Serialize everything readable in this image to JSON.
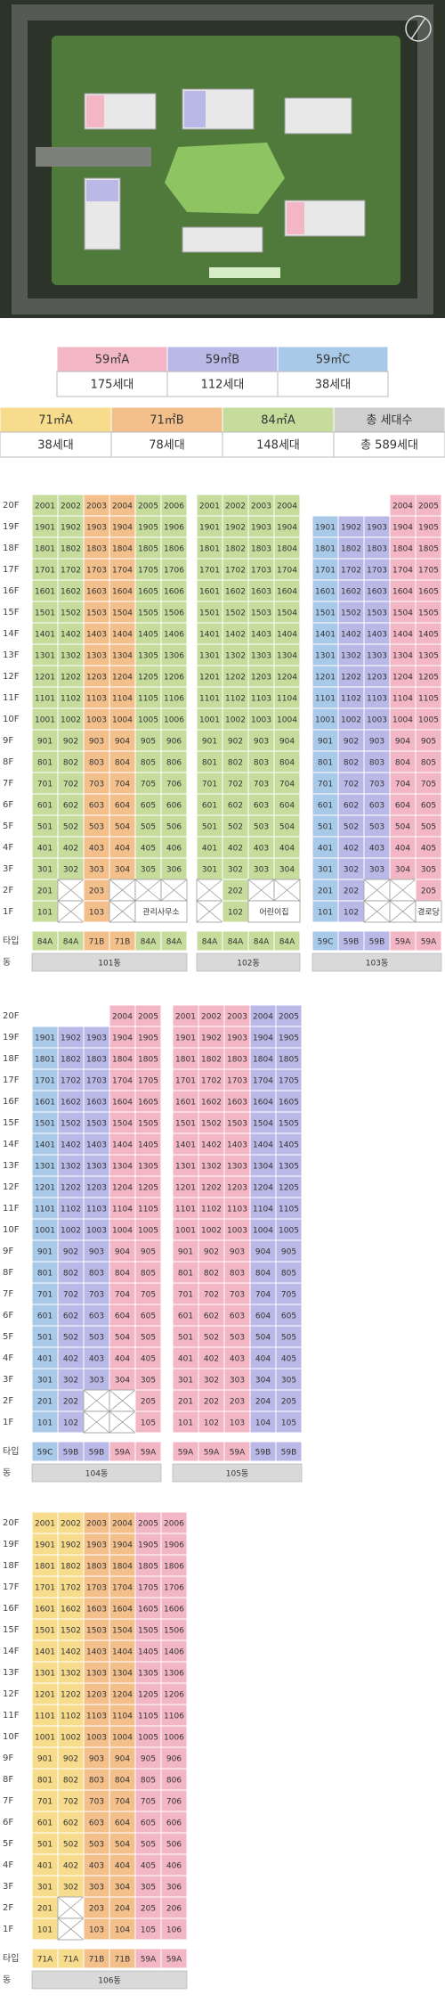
{
  "legend": [
    {
      "headers": [
        "59㎡A",
        "59㎡B",
        "59㎡C"
      ],
      "counts": [
        "175세대",
        "112세대",
        "38세대"
      ],
      "colors": [
        "#f2b6c4",
        "#b9b8e6",
        "#a9c9e8"
      ]
    },
    {
      "headers": [
        "71㎡A",
        "71㎡B",
        "84㎡A",
        "총 세대수"
      ],
      "counts": [
        "38세대",
        "78세대",
        "148세대",
        "총 589세대"
      ],
      "colors": [
        "#f6dc8c",
        "#f3c08c",
        "#c6dc9c",
        "#cfcfcf"
      ]
    }
  ],
  "floor_labels": [
    "20F",
    "19F",
    "18F",
    "17F",
    "16F",
    "15F",
    "14F",
    "13F",
    "12F",
    "11F",
    "10F",
    "9F",
    "8F",
    "7F",
    "6F",
    "5F",
    "4F",
    "3F",
    "2F",
    "1F"
  ],
  "type_label": "타입",
  "building_label": "동",
  "sections": [
    {
      "buildings": [
        {
          "name": "101동",
          "types": [
            "84A",
            "84A",
            "71B",
            "71B",
            "84A",
            "84A"
          ],
          "colors": [
            "#c6dc9c",
            "#c6dc9c",
            "#f3c08c",
            "#f3c08c",
            "#c6dc9c",
            "#c6dc9c"
          ],
          "rows": [
            [
              "2001",
              "2002",
              "2003",
              "2004",
              "2005",
              "2006"
            ],
            [
              "1901",
              "1902",
              "1903",
              "1904",
              "1905",
              "1906"
            ],
            [
              "1801",
              "1802",
              "1803",
              "1804",
              "1805",
              "1806"
            ],
            [
              "1701",
              "1702",
              "1703",
              "1704",
              "1705",
              "1706"
            ],
            [
              "1601",
              "1602",
              "1603",
              "1604",
              "1605",
              "1606"
            ],
            [
              "1501",
              "1502",
              "1503",
              "1504",
              "1505",
              "1506"
            ],
            [
              "1401",
              "1402",
              "1403",
              "1404",
              "1405",
              "1406"
            ],
            [
              "1301",
              "1302",
              "1303",
              "1304",
              "1305",
              "1306"
            ],
            [
              "1201",
              "1202",
              "1203",
              "1204",
              "1205",
              "1206"
            ],
            [
              "1101",
              "1102",
              "1103",
              "1104",
              "1105",
              "1106"
            ],
            [
              "1001",
              "1002",
              "1003",
              "1004",
              "1005",
              "1006"
            ],
            [
              "901",
              "902",
              "903",
              "904",
              "905",
              "906"
            ],
            [
              "801",
              "802",
              "803",
              "804",
              "805",
              "806"
            ],
            [
              "701",
              "702",
              "703",
              "704",
              "705",
              "706"
            ],
            [
              "601",
              "602",
              "603",
              "604",
              "605",
              "606"
            ],
            [
              "501",
              "502",
              "503",
              "504",
              "505",
              "506"
            ],
            [
              "401",
              "402",
              "403",
              "404",
              "405",
              "406"
            ],
            [
              "301",
              "302",
              "303",
              "304",
              "305",
              "306"
            ],
            [
              "201",
              false,
              "203",
              false,
              false,
              false
            ],
            [
              "101",
              false,
              "103",
              false,
              "관리사무소",
              null
            ]
          ]
        },
        {
          "name": "102동",
          "types": [
            "84A",
            "84A",
            "84A",
            "84A"
          ],
          "colors": [
            "#c6dc9c",
            "#c6dc9c",
            "#c6dc9c",
            "#c6dc9c"
          ],
          "rows": [
            [
              "2001",
              "2002",
              "2003",
              "2004"
            ],
            [
              "1901",
              "1902",
              "1903",
              "1904"
            ],
            [
              "1801",
              "1802",
              "1803",
              "1804"
            ],
            [
              "1701",
              "1702",
              "1703",
              "1704"
            ],
            [
              "1601",
              "1602",
              "1603",
              "1604"
            ],
            [
              "1501",
              "1502",
              "1503",
              "1504"
            ],
            [
              "1401",
              "1402",
              "1403",
              "1404"
            ],
            [
              "1301",
              "1302",
              "1303",
              "1304"
            ],
            [
              "1201",
              "1202",
              "1203",
              "1204"
            ],
            [
              "1101",
              "1102",
              "1103",
              "1104"
            ],
            [
              "1001",
              "1002",
              "1003",
              "1004"
            ],
            [
              "901",
              "902",
              "903",
              "904"
            ],
            [
              "801",
              "802",
              "803",
              "804"
            ],
            [
              "701",
              "702",
              "703",
              "704"
            ],
            [
              "601",
              "602",
              "603",
              "604"
            ],
            [
              "501",
              "502",
              "503",
              "504"
            ],
            [
              "401",
              "402",
              "403",
              "404"
            ],
            [
              "301",
              "302",
              "303",
              "304"
            ],
            [
              false,
              "202",
              false,
              false
            ],
            [
              false,
              "102",
              "어린이집",
              null
            ]
          ]
        },
        {
          "name": "103동",
          "types": [
            "59C",
            "59B",
            "59B",
            "59A",
            "59A"
          ],
          "colors": [
            "#a9c9e8",
            "#b9b8e6",
            "#b9b8e6",
            "#f2b6c4",
            "#f2b6c4"
          ],
          "rows": [
            [
              null,
              null,
              null,
              "2004",
              "2005"
            ],
            [
              "1901",
              "1902",
              "1903",
              "1904",
              "1905"
            ],
            [
              "1801",
              "1802",
              "1803",
              "1804",
              "1805"
            ],
            [
              "1701",
              "1702",
              "1703",
              "1704",
              "1705"
            ],
            [
              "1601",
              "1602",
              "1603",
              "1604",
              "1605"
            ],
            [
              "1501",
              "1502",
              "1503",
              "1504",
              "1505"
            ],
            [
              "1401",
              "1402",
              "1403",
              "1404",
              "1405"
            ],
            [
              "1301",
              "1302",
              "1303",
              "1304",
              "1305"
            ],
            [
              "1201",
              "1202",
              "1203",
              "1204",
              "1205"
            ],
            [
              "1101",
              "1102",
              "1103",
              "1104",
              "1105"
            ],
            [
              "1001",
              "1002",
              "1003",
              "1004",
              "1005"
            ],
            [
              "901",
              "902",
              "903",
              "904",
              "905"
            ],
            [
              "801",
              "802",
              "803",
              "804",
              "805"
            ],
            [
              "701",
              "702",
              "703",
              "704",
              "705"
            ],
            [
              "601",
              "602",
              "603",
              "604",
              "605"
            ],
            [
              "501",
              "502",
              "503",
              "504",
              "505"
            ],
            [
              "401",
              "402",
              "403",
              "404",
              "405"
            ],
            [
              "301",
              "302",
              "303",
              "304",
              "305"
            ],
            [
              "201",
              "202",
              false,
              false,
              "205"
            ],
            [
              "101",
              "102",
              false,
              false,
              "경로당"
            ]
          ]
        }
      ]
    },
    {
      "buildings": [
        {
          "name": "104동",
          "types": [
            "59C",
            "59B",
            "59B",
            "59A",
            "59A"
          ],
          "colors": [
            "#a9c9e8",
            "#b9b8e6",
            "#b9b8e6",
            "#f2b6c4",
            "#f2b6c4"
          ],
          "rows": [
            [
              null,
              null,
              null,
              "2004",
              "2005"
            ],
            [
              "1901",
              "1902",
              "1903",
              "1904",
              "1905"
            ],
            [
              "1801",
              "1802",
              "1803",
              "1804",
              "1805"
            ],
            [
              "1701",
              "1702",
              "1703",
              "1704",
              "1705"
            ],
            [
              "1601",
              "1602",
              "1603",
              "1604",
              "1605"
            ],
            [
              "1501",
              "1502",
              "1503",
              "1504",
              "1505"
            ],
            [
              "1401",
              "1402",
              "1403",
              "1404",
              "1405"
            ],
            [
              "1301",
              "1302",
              "1303",
              "1304",
              "1305"
            ],
            [
              "1201",
              "1202",
              "1203",
              "1204",
              "1205"
            ],
            [
              "1101",
              "1102",
              "1103",
              "1104",
              "1105"
            ],
            [
              "1001",
              "1002",
              "1003",
              "1004",
              "1005"
            ],
            [
              "901",
              "902",
              "903",
              "904",
              "905"
            ],
            [
              "801",
              "802",
              "803",
              "804",
              "805"
            ],
            [
              "701",
              "702",
              "703",
              "704",
              "705"
            ],
            [
              "601",
              "602",
              "603",
              "604",
              "605"
            ],
            [
              "501",
              "502",
              "503",
              "504",
              "505"
            ],
            [
              "401",
              "402",
              "403",
              "404",
              "405"
            ],
            [
              "301",
              "302",
              "303",
              "304",
              "305"
            ],
            [
              "201",
              "202",
              false,
              false,
              "205"
            ],
            [
              "101",
              "102",
              false,
              false,
              "105"
            ]
          ]
        },
        {
          "name": "105동",
          "types": [
            "59A",
            "59A",
            "59A",
            "59B",
            "59B"
          ],
          "colors": [
            "#f2b6c4",
            "#f2b6c4",
            "#f2b6c4",
            "#b9b8e6",
            "#b9b8e6"
          ],
          "rows": [
            [
              "2001",
              "2002",
              "2003",
              "2004",
              "2005"
            ],
            [
              "1901",
              "1902",
              "1903",
              "1904",
              "1905"
            ],
            [
              "1801",
              "1802",
              "1803",
              "1804",
              "1805"
            ],
            [
              "1701",
              "1702",
              "1703",
              "1704",
              "1705"
            ],
            [
              "1601",
              "1602",
              "1603",
              "1604",
              "1605"
            ],
            [
              "1501",
              "1502",
              "1503",
              "1504",
              "1505"
            ],
            [
              "1401",
              "1402",
              "1403",
              "1404",
              "1405"
            ],
            [
              "1301",
              "1302",
              "1303",
              "1304",
              "1305"
            ],
            [
              "1201",
              "1202",
              "1203",
              "1204",
              "1205"
            ],
            [
              "1101",
              "1102",
              "1103",
              "1104",
              "1105"
            ],
            [
              "1001",
              "1002",
              "1003",
              "1004",
              "1005"
            ],
            [
              "901",
              "902",
              "903",
              "904",
              "905"
            ],
            [
              "801",
              "802",
              "803",
              "804",
              "805"
            ],
            [
              "701",
              "702",
              "703",
              "704",
              "705"
            ],
            [
              "601",
              "602",
              "603",
              "604",
              "605"
            ],
            [
              "501",
              "502",
              "503",
              "504",
              "505"
            ],
            [
              "401",
              "402",
              "403",
              "404",
              "405"
            ],
            [
              "301",
              "302",
              "303",
              "304",
              "305"
            ],
            [
              "201",
              "202",
              "203",
              "204",
              "205"
            ],
            [
              "101",
              "102",
              "103",
              "104",
              "105"
            ]
          ]
        }
      ]
    },
    {
      "buildings": [
        {
          "name": "106동",
          "types": [
            "71A",
            "71A",
            "71B",
            "71B",
            "59A",
            "59A"
          ],
          "colors": [
            "#f6dc8c",
            "#f6dc8c",
            "#f3c08c",
            "#f3c08c",
            "#f2b6c4",
            "#f2b6c4"
          ],
          "rows": [
            [
              "2001",
              "2002",
              "2003",
              "2004",
              "2005",
              "2006"
            ],
            [
              "1901",
              "1902",
              "1903",
              "1904",
              "1905",
              "1906"
            ],
            [
              "1801",
              "1802",
              "1803",
              "1804",
              "1805",
              "1806"
            ],
            [
              "1701",
              "1702",
              "1703",
              "1704",
              "1705",
              "1706"
            ],
            [
              "1601",
              "1602",
              "1603",
              "1604",
              "1605",
              "1606"
            ],
            [
              "1501",
              "1502",
              "1503",
              "1504",
              "1505",
              "1506"
            ],
            [
              "1401",
              "1402",
              "1403",
              "1404",
              "1405",
              "1406"
            ],
            [
              "1301",
              "1302",
              "1303",
              "1304",
              "1305",
              "1306"
            ],
            [
              "1201",
              "1202",
              "1203",
              "1204",
              "1205",
              "1206"
            ],
            [
              "1101",
              "1102",
              "1103",
              "1104",
              "1105",
              "1106"
            ],
            [
              "1001",
              "1002",
              "1003",
              "1004",
              "1005",
              "1006"
            ],
            [
              "901",
              "902",
              "903",
              "904",
              "905",
              "906"
            ],
            [
              "801",
              "802",
              "803",
              "804",
              "805",
              "806"
            ],
            [
              "701",
              "702",
              "703",
              "704",
              "705",
              "706"
            ],
            [
              "601",
              "602",
              "603",
              "604",
              "605",
              "606"
            ],
            [
              "501",
              "502",
              "503",
              "504",
              "505",
              "506"
            ],
            [
              "401",
              "402",
              "403",
              "404",
              "405",
              "406"
            ],
            [
              "301",
              "302",
              "303",
              "304",
              "305",
              "306"
            ],
            [
              "201",
              false,
              "203",
              "204",
              "205",
              "206"
            ],
            [
              "101",
              false,
              "103",
              "104",
              "105",
              "106"
            ]
          ]
        }
      ]
    }
  ]
}
